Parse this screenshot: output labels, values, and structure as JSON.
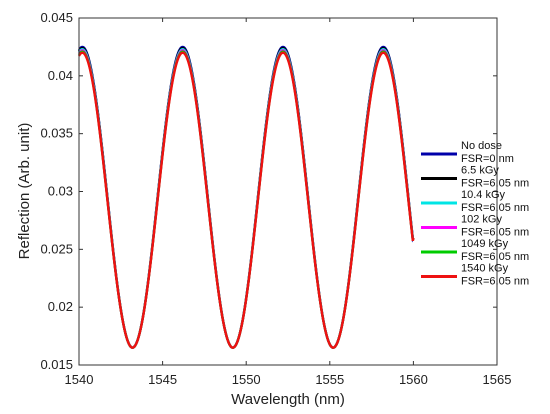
{
  "chart_data": {
    "type": "line",
    "xlabel": "Wavelength (nm)",
    "ylabel": "Reflection (Arb. unit)",
    "xlim": [
      1540,
      1565
    ],
    "ylim": [
      0.015,
      0.045
    ],
    "xticks": [
      "1540",
      "1545",
      "1550",
      "1555",
      "1560",
      "1565"
    ],
    "yticks": [
      "0.015",
      "0.02",
      "0.025",
      "0.03",
      "0.035",
      "0.04",
      "0.045"
    ],
    "grid": false,
    "legend_position": "right",
    "x_range": [
      1540,
      1560
    ],
    "peak_wavelengths": [
      1540.2,
      1546.2,
      1552.2,
      1558.2
    ],
    "valley_wavelengths": [
      1543.2,
      1549.2,
      1555.2
    ],
    "min_value": 0.0165,
    "end_value": 0.026,
    "series": [
      {
        "name": "No dose",
        "label2": "FSR=0 nm",
        "color": "#0000aa",
        "peak": 0.0425
      },
      {
        "name": "6.5 kGy",
        "label2": "FSR=6.05 nm",
        "color": "#000000",
        "peak": 0.0424
      },
      {
        "name": "10.4 kGy",
        "label2": "FSR=6.05 nm",
        "color": "#00e5e5",
        "peak": 0.0423
      },
      {
        "name": "102 kGy",
        "label2": "FSR=6.05 nm",
        "color": "#ff00ff",
        "peak": 0.0422
      },
      {
        "name": "1049 kGy",
        "label2": "FSR=6.05 nm",
        "color": "#00cc00",
        "peak": 0.0421
      },
      {
        "name": "1540 kGy",
        "label2": "FSR=6.05 nm",
        "color": "#ee1111",
        "peak": 0.042
      }
    ]
  }
}
